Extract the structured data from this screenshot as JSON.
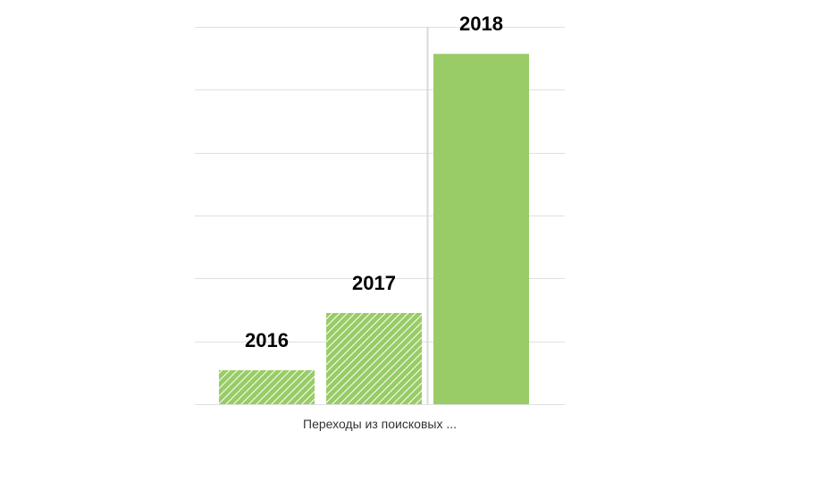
{
  "chart_data": {
    "type": "bar",
    "categories": [
      "Переходы из поисковых ..."
    ],
    "series": [
      {
        "name": "2016",
        "values": [
          5.4
        ],
        "style": "hatched"
      },
      {
        "name": "2017",
        "values": [
          14.5
        ],
        "style": "hatched"
      },
      {
        "name": "2018",
        "values": [
          55.7
        ],
        "style": "solid"
      }
    ],
    "data_labels": [
      "2016",
      "2017",
      "2018"
    ],
    "ylim": [
      0,
      60
    ],
    "grid": true,
    "y_axis_labels_visible": false,
    "colors": {
      "bar": "#99cc66",
      "hatch_line": "#ffffff",
      "grid": "#e0e0e0",
      "separator": "#d9d9d9"
    }
  }
}
